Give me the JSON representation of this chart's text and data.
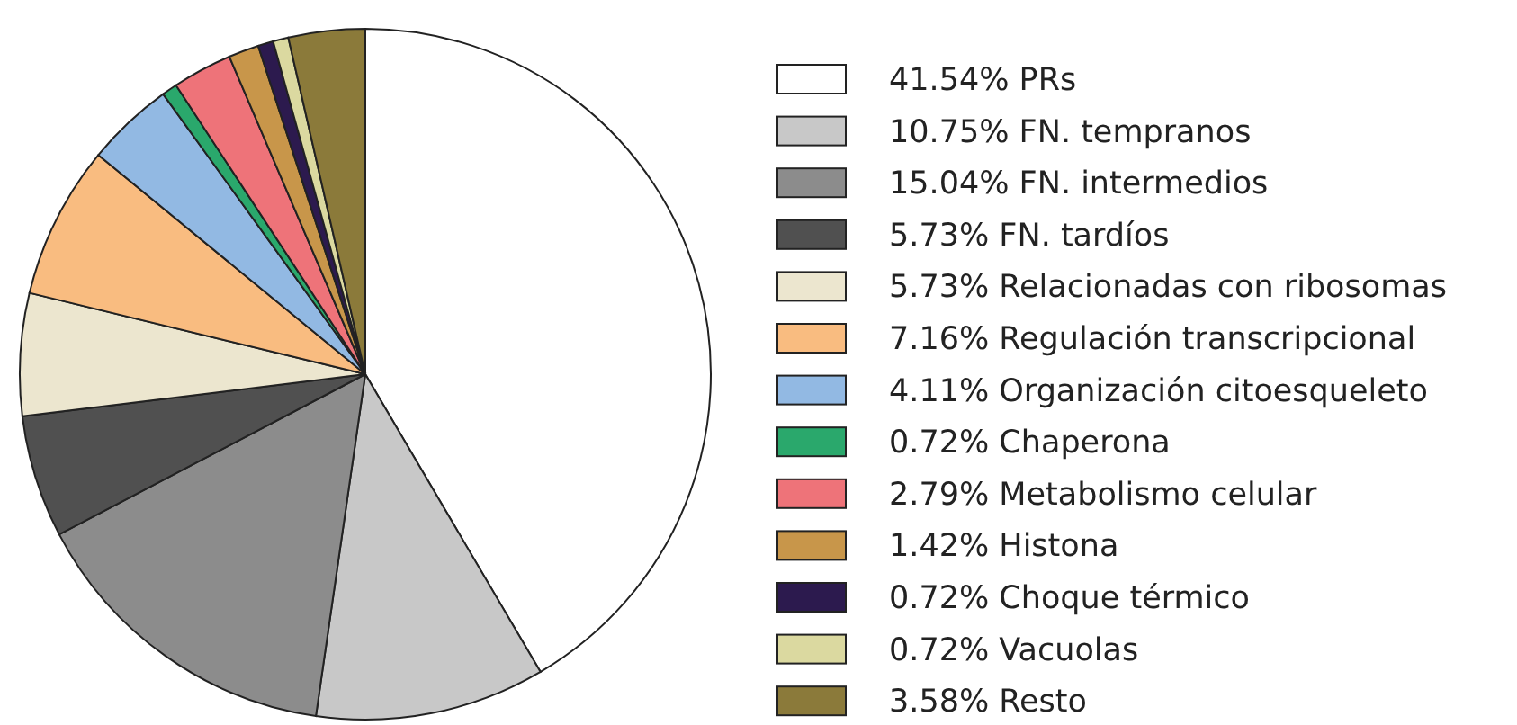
{
  "chart_data": {
    "type": "pie",
    "categories": [
      "PRs",
      "FN. tempranos",
      "FN. intermedios",
      "FN. tardíos",
      "Relacionadas con ribosomas",
      "Regulación transcripcional",
      "Organización citoesqueleto",
      "Chaperona",
      "Metabolismo celular",
      "Histona",
      "Choque térmico",
      "Vacuolas",
      "Resto"
    ],
    "values": [
      41.54,
      10.75,
      15.04,
      5.73,
      5.73,
      7.16,
      4.11,
      0.72,
      2.79,
      1.42,
      0.72,
      0.72,
      3.58
    ],
    "value_labels": [
      "41.54%",
      "10.75%",
      "15.04%",
      "5.73%",
      "5.73%",
      "7.16%",
      "4.11%",
      "0.72%",
      "2.79%",
      "1.42%",
      "0.72%",
      "0.72%",
      "3.58%"
    ],
    "colors": [
      "#ffffff",
      "#c8c8c8",
      "#8c8c8c",
      "#505050",
      "#ece6cf",
      "#f9bc80",
      "#92b9e3",
      "#2aa86c",
      "#ee7379",
      "#c8964a",
      "#2c1a4e",
      "#dbd9a0",
      "#8b7a3a"
    ],
    "legend": "right"
  }
}
